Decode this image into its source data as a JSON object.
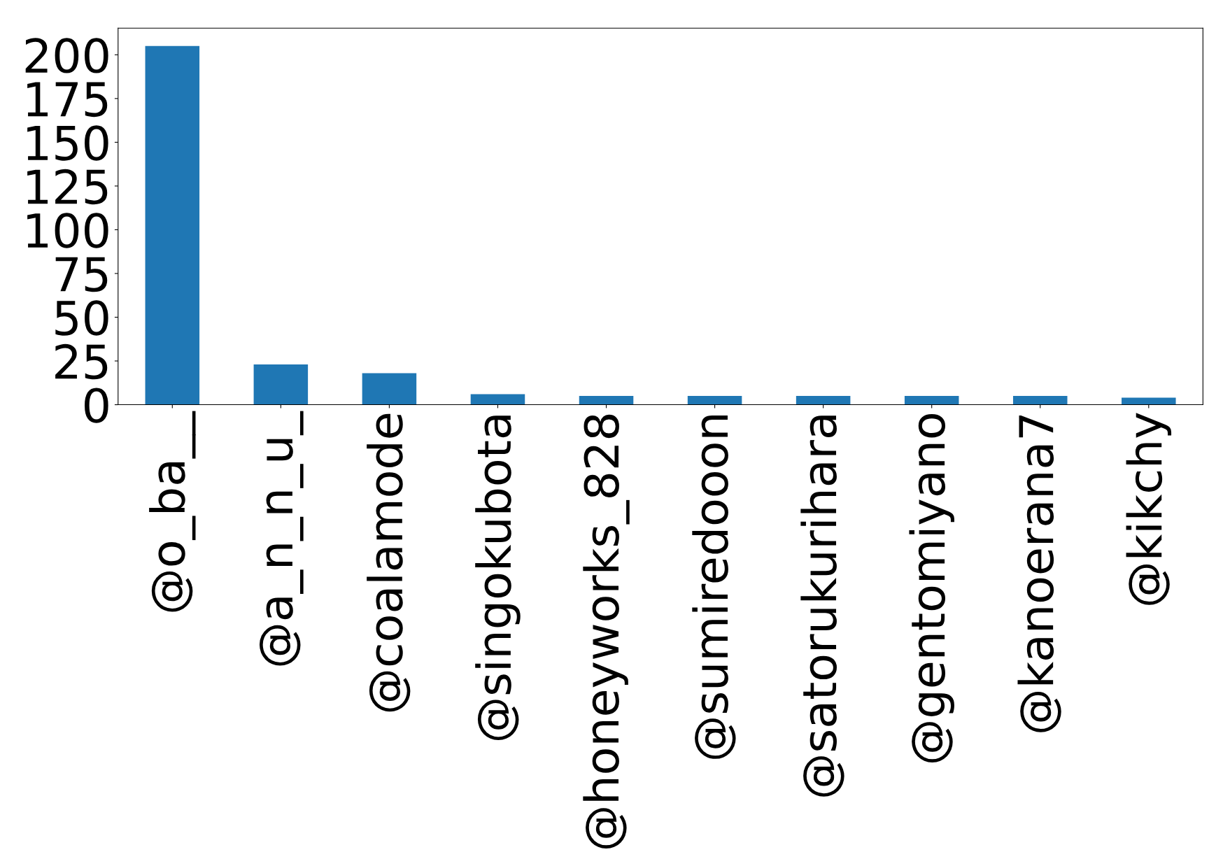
{
  "chart_data": {
    "type": "bar",
    "categories": [
      "@o_ba__",
      "@a_n_n_u_",
      "@coalamode",
      "@singokubota",
      "@honeyworks_828",
      "@sumiredooon",
      "@satorukurihara",
      "@gentomiyano",
      "@kanoerana7",
      "@kikchy"
    ],
    "values": [
      205,
      23,
      18,
      6,
      5,
      5,
      5,
      5,
      5,
      4
    ],
    "color": "#1f77b4",
    "ylim": [
      0,
      215.25
    ],
    "yticks": [
      0,
      25,
      50,
      75,
      100,
      125,
      150,
      175,
      200
    ],
    "grid": false,
    "legend": false
  }
}
